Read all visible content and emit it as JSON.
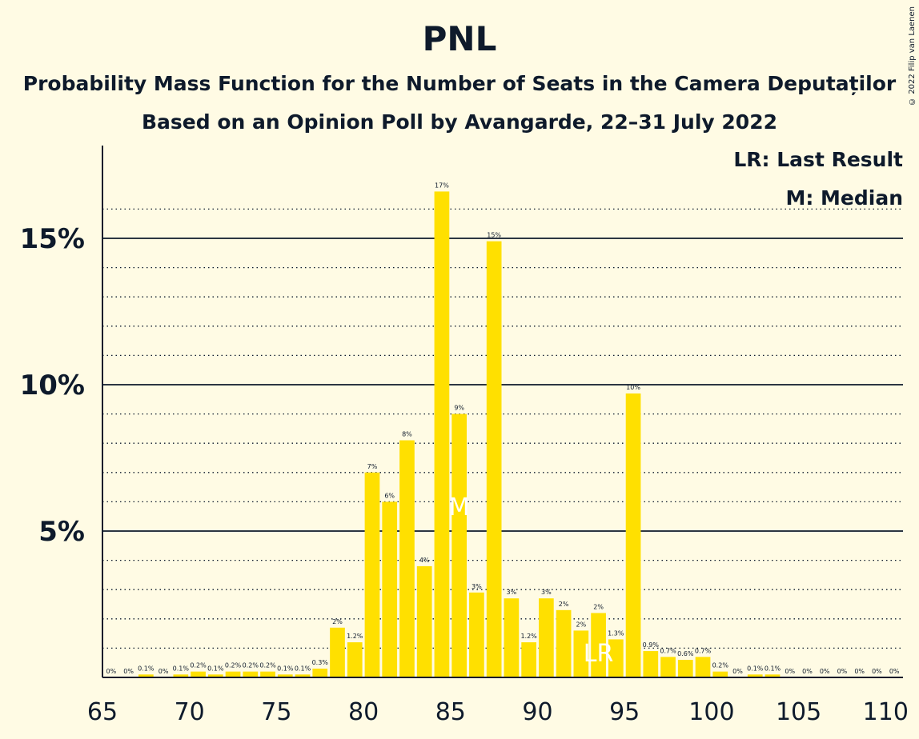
{
  "chart_data": {
    "type": "bar",
    "title": "PNL",
    "subtitle": "Probability Mass Function for the Number of Seats in the Camera Deputaților",
    "subtitle2": "Based on an Opinion Poll by Avangarde, 22–31 July 2022",
    "copyright": "© 2022 Filip van Laenen",
    "legend": [
      "LR: Last Result",
      "M: Median"
    ],
    "legend_position": "top-right",
    "bar_color": "#ffe000",
    "x": [
      65,
      66,
      67,
      68,
      69,
      70,
      71,
      72,
      73,
      74,
      75,
      76,
      77,
      78,
      79,
      80,
      81,
      82,
      83,
      84,
      85,
      86,
      87,
      88,
      89,
      90,
      91,
      92,
      93,
      94,
      95,
      96,
      97,
      98,
      99,
      100,
      101,
      102,
      103,
      104,
      105,
      106,
      107,
      108,
      109,
      110
    ],
    "values": [
      0,
      0,
      0.1,
      0,
      0.1,
      0.2,
      0.1,
      0.2,
      0.2,
      0.2,
      0.1,
      0.1,
      0.3,
      1.7,
      1.2,
      7.0,
      6.0,
      8.1,
      3.8,
      16.6,
      9.0,
      2.9,
      14.9,
      2.7,
      1.2,
      2.7,
      2.3,
      1.6,
      2.2,
      1.3,
      9.7,
      0.9,
      0.7,
      0.6,
      0.7,
      0.2,
      0,
      0.1,
      0.1,
      0,
      0,
      0,
      0,
      0,
      0,
      0
    ],
    "labels": [
      "0%",
      "0%",
      "0.1%",
      "0%",
      "0.1%",
      "0.2%",
      "0.1%",
      "0.2%",
      "0.2%",
      "0.2%",
      "0.1%",
      "0.1%",
      "0.3%",
      "2%",
      "1.2%",
      "7%",
      "6%",
      "8%",
      "4%",
      "17%",
      "9%",
      "3%",
      "15%",
      "3%",
      "1.2%",
      "3%",
      "2%",
      "2%",
      "2%",
      "1.3%",
      "10%",
      "0.9%",
      "0.7%",
      "0.6%",
      "0.7%",
      "0.2%",
      "0%",
      "0.1%",
      "0.1%",
      "0%",
      "0%",
      "0%",
      "0%",
      "0%",
      "0%",
      "0%"
    ],
    "ylim": [
      0,
      17.5
    ],
    "yticks": [
      {
        "value": 5,
        "label": "5%"
      },
      {
        "value": 10,
        "label": "10%"
      },
      {
        "value": 15,
        "label": "15%"
      }
    ],
    "minor_gridlines": [
      1,
      2,
      3,
      4,
      6,
      7,
      8,
      9,
      11,
      12,
      13,
      14,
      16
    ],
    "xticks": [
      {
        "value": 65,
        "label": "65"
      },
      {
        "value": 70,
        "label": "70"
      },
      {
        "value": 75,
        "label": "75"
      },
      {
        "value": 80,
        "label": "80"
      },
      {
        "value": 85,
        "label": "85"
      },
      {
        "value": 90,
        "label": "90"
      },
      {
        "value": 95,
        "label": "95"
      },
      {
        "value": 100,
        "label": "100"
      },
      {
        "value": 105,
        "label": "105"
      },
      {
        "value": 110,
        "label": "110"
      }
    ],
    "median_seat": 85,
    "median_marker": "M",
    "last_result_seat": 93,
    "last_result_marker": "LR"
  }
}
